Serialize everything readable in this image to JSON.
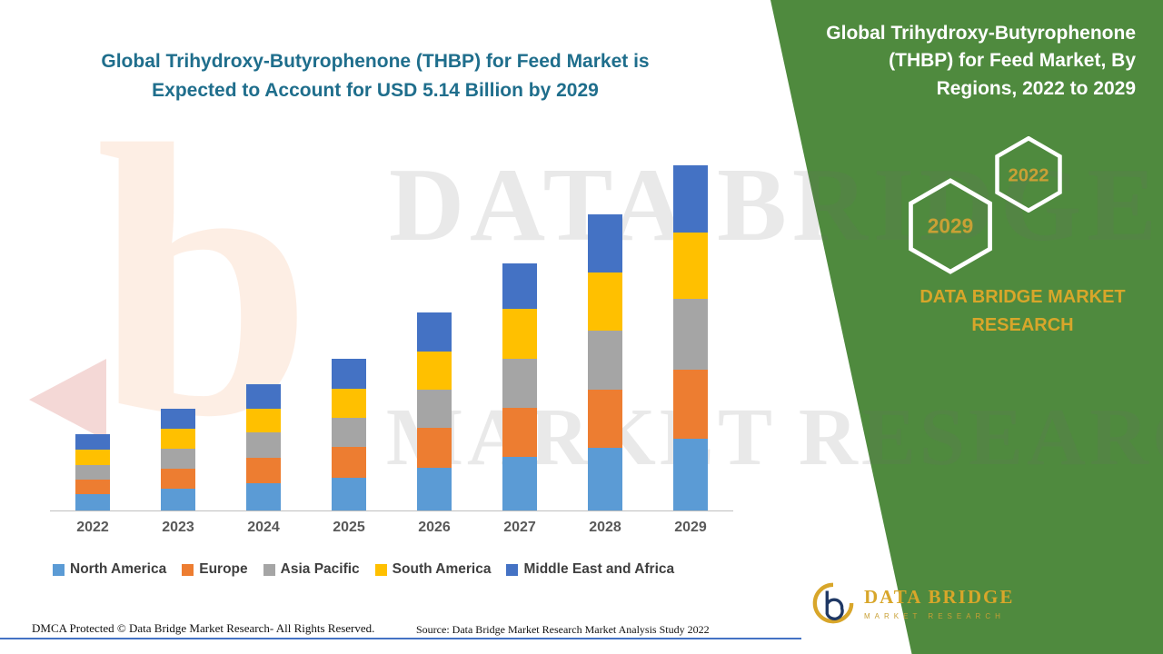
{
  "title": {
    "line1": "Global Trihydroxy-Butyrophenone (THBP) for Feed Market is",
    "line2": "Expected to Account for USD 5.14 Billion by 2029"
  },
  "panel": {
    "title": "Global Trihydroxy-Butyrophenone (THBP) for Feed Market, By Regions, 2022 to 2029",
    "hexagons": [
      "2029",
      "2022"
    ],
    "brand": "DATA BRIDGE MARKET RESEARCH",
    "green": "#4F8A3E",
    "gold": "#D8A62A"
  },
  "watermark": {
    "line1": "DATA BRIDGE",
    "line2": "MARKET RESEARCH",
    "logo_letter": "b"
  },
  "footer": {
    "left": "DMCA Protected © Data Bridge Market Research- All Rights Reserved.",
    "source": "Source: Data Bridge Market Research Market Analysis Study 2022"
  },
  "logo": {
    "name": "DATA BRIDGE",
    "subtitle": "MARKET RESEARCH"
  },
  "chart_data": {
    "type": "bar",
    "stacked": true,
    "title": "Global Trihydroxy-Butyrophenone (THBP) for Feed Market is Expected to Account for USD 5.14 Billion by 2029",
    "unit": "USD Billion",
    "categories": [
      "2022",
      "2023",
      "2024",
      "2025",
      "2026",
      "2027",
      "2028",
      "2029"
    ],
    "totals": [
      1.14,
      1.52,
      1.88,
      2.25,
      2.95,
      3.68,
      4.4,
      5.14
    ],
    "series": [
      {
        "name": "North America",
        "color": "#5B9BD5",
        "values": [
          0.24,
          0.32,
          0.4,
          0.49,
          0.64,
          0.8,
          0.93,
          1.07
        ]
      },
      {
        "name": "Europe",
        "color": "#ED7D31",
        "values": [
          0.22,
          0.3,
          0.38,
          0.45,
          0.59,
          0.73,
          0.87,
          1.03
        ]
      },
      {
        "name": "Asia Pacific",
        "color": "#A5A5A5",
        "values": [
          0.22,
          0.3,
          0.38,
          0.44,
          0.57,
          0.73,
          0.87,
          1.05
        ]
      },
      {
        "name": "South America",
        "color": "#FFC000",
        "values": [
          0.23,
          0.3,
          0.36,
          0.43,
          0.57,
          0.74,
          0.87,
          0.99
        ]
      },
      {
        "name": "Middle East and Africa",
        "color": "#4472C4",
        "values": [
          0.23,
          0.3,
          0.36,
          0.44,
          0.58,
          0.68,
          0.86,
          1.0
        ]
      }
    ],
    "ylim": [
      0,
      5.5
    ],
    "grid": false,
    "legend_position": "bottom"
  }
}
